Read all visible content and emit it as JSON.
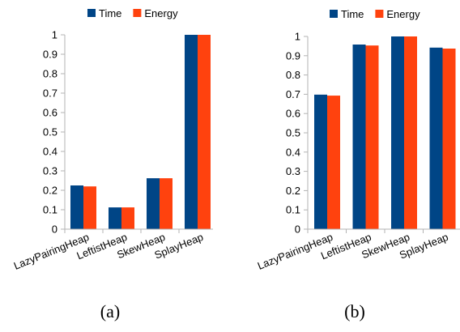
{
  "chart_data": [
    {
      "type": "bar",
      "caption": "(a)",
      "categories": [
        "LazyPairingHeap",
        "LeftistHeap",
        "SkewHeap",
        "SplayHeap"
      ],
      "series": [
        {
          "name": "Time",
          "color": "#004586",
          "values": [
            0.225,
            0.112,
            0.262,
            1.0
          ]
        },
        {
          "name": "Energy",
          "color": "#ff420e",
          "values": [
            0.22,
            0.112,
            0.262,
            1.0
          ]
        }
      ],
      "yticks": [
        "0",
        "0.1",
        "0.2",
        "0.3",
        "0.4",
        "0.5",
        "0.6",
        "0.7",
        "0.8",
        "0.9",
        "1"
      ],
      "ylim": [
        0,
        1
      ],
      "grid": false,
      "legend": "top-center"
    },
    {
      "type": "bar",
      "caption": "(b)",
      "categories": [
        "LazyPairingHeap",
        "LeftistHeap",
        "SkewHeap",
        "SplayHeap"
      ],
      "series": [
        {
          "name": "Time",
          "color": "#004586",
          "values": [
            0.698,
            0.958,
            1.0,
            0.942
          ]
        },
        {
          "name": "Energy",
          "color": "#ff420e",
          "values": [
            0.693,
            0.953,
            1.0,
            0.937
          ]
        }
      ],
      "yticks": [
        "0",
        "0.1",
        "0.2",
        "0.3",
        "0.4",
        "0.5",
        "0.6",
        "0.7",
        "0.8",
        "0.9",
        "1"
      ],
      "ylim": [
        0,
        1
      ],
      "grid": false,
      "legend": "top-center"
    }
  ]
}
